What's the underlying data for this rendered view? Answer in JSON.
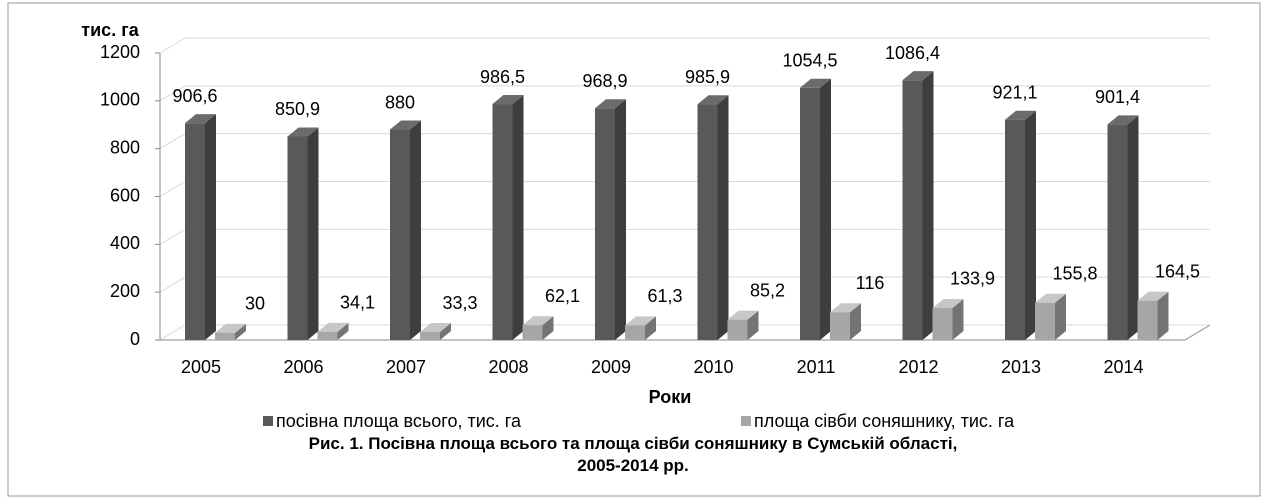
{
  "chart_data": {
    "type": "bar3d",
    "title": "Рис. 1. Посівна площа всього та площа сівби соняшнику в Сумській області, 2005-2014 рр.",
    "y_label": "тис. га",
    "x_label": "Роки",
    "categories": [
      "2005",
      "2006",
      "2007",
      "2008",
      "2009",
      "2010",
      "2011",
      "2012",
      "2013",
      "2014"
    ],
    "series": [
      {
        "name": "посівна площа всього, тис. га",
        "color": "#595959",
        "values": [
          906.6,
          850.9,
          880,
          986.5,
          968.9,
          985.9,
          1054.5,
          1086.4,
          921.1,
          901.4
        ],
        "value_labels": [
          "906,6",
          "850,9",
          "880",
          "986,5",
          "968,9",
          "985,9",
          "1054,5",
          "1086,4",
          "921,1",
          "901,4"
        ]
      },
      {
        "name": "площа сівби соняшнику, тис. га",
        "color": "#a6a6a6",
        "values": [
          30,
          34.1,
          33.3,
          62.1,
          61.3,
          85.2,
          116,
          133.9,
          155.8,
          164.5
        ],
        "value_labels": [
          "30",
          "34,1",
          "33,3",
          "62,1",
          "61,3",
          "85,2",
          "116",
          "133,9",
          "155,8",
          "164,5"
        ]
      }
    ],
    "ylim": [
      0,
      1200
    ],
    "yticks": [
      0,
      200,
      400,
      600,
      800,
      1000,
      1200
    ],
    "grid": true
  }
}
